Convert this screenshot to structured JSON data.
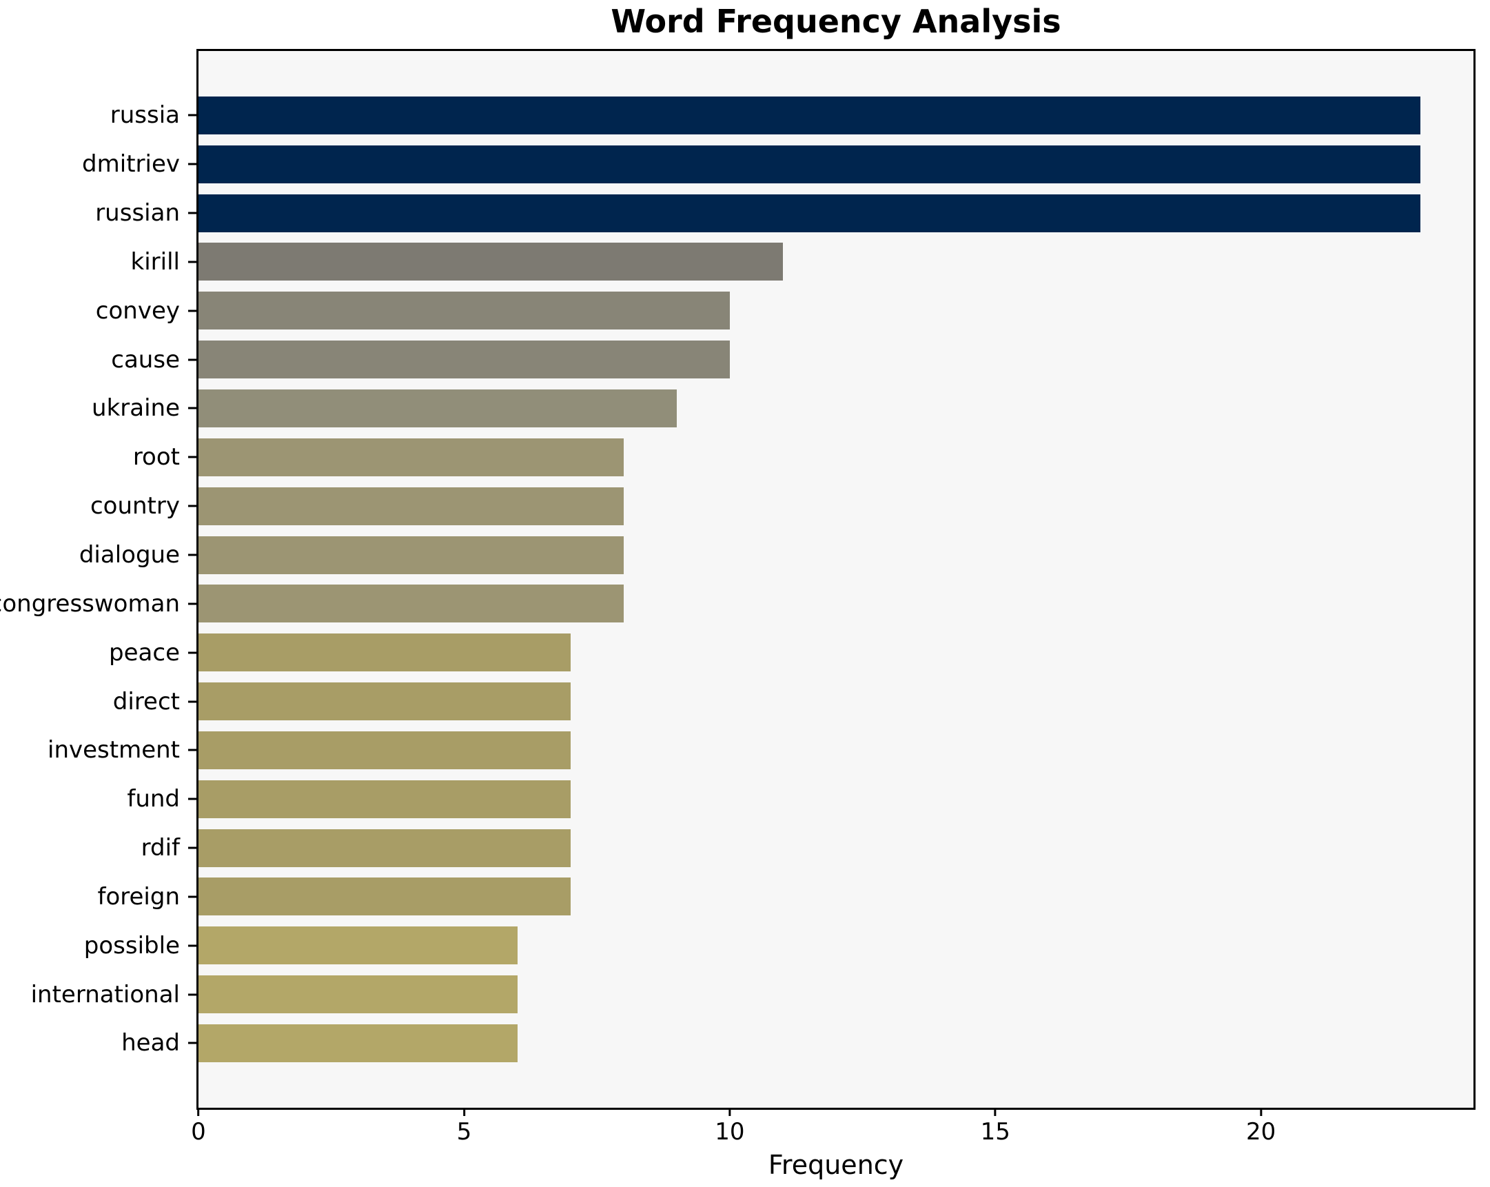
{
  "chart_data": {
    "type": "bar",
    "orientation": "horizontal",
    "title": "Word Frequency Analysis",
    "xlabel": "Frequency",
    "ylabel": "",
    "categories": [
      "russia",
      "dmitriev",
      "russian",
      "kirill",
      "convey",
      "cause",
      "ukraine",
      "root",
      "country",
      "dialogue",
      "congresswoman",
      "peace",
      "direct",
      "investment",
      "fund",
      "rdif",
      "foreign",
      "possible",
      "international",
      "head"
    ],
    "values": [
      23,
      23,
      23,
      11,
      10,
      10,
      9,
      8,
      8,
      8,
      8,
      7,
      7,
      7,
      7,
      7,
      7,
      6,
      6,
      6
    ],
    "bar_colors": [
      "#00254e",
      "#00254e",
      "#00254e",
      "#7d7a72",
      "#888577",
      "#888577",
      "#918e79",
      "#9c9573",
      "#9c9573",
      "#9c9573",
      "#9c9573",
      "#a89d66",
      "#a89d66",
      "#a89d66",
      "#a89d66",
      "#a89d66",
      "#a89d66",
      "#b3a768",
      "#b3a768",
      "#b3a768"
    ],
    "xlim": [
      0,
      24
    ],
    "x_ticks": [
      0,
      5,
      10,
      15,
      20
    ],
    "grid": false,
    "legend_position": "none",
    "plot_background": "#f7f7f7",
    "figure_background": "#ffffff",
    "spine_color": "#000000"
  }
}
